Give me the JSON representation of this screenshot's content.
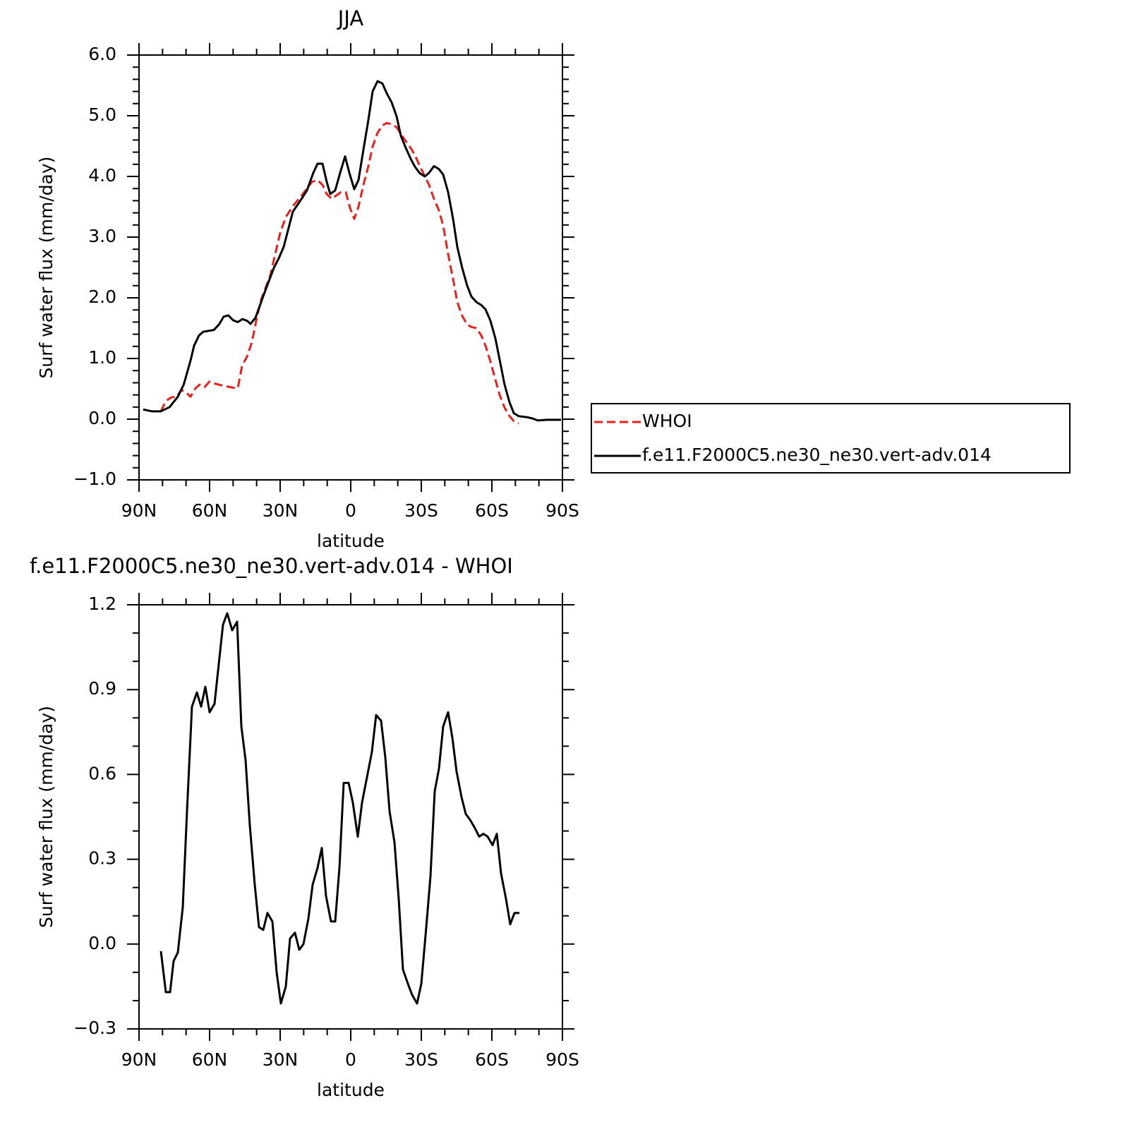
{
  "chart_data": [
    {
      "type": "line",
      "title": "JJA",
      "xlabel": "latitude",
      "ylabel": "Surf water flux (mm/day)",
      "xlim": [
        90,
        -90
      ],
      "xticks": [
        {
          "value": 90,
          "label": "90N"
        },
        {
          "value": 60,
          "label": "60N"
        },
        {
          "value": 30,
          "label": "30N"
        },
        0,
        {
          "value": -30,
          "label": "30S"
        },
        {
          "value": -60,
          "label": "60S"
        },
        {
          "value": -90,
          "label": "90S"
        }
      ],
      "ylim": [
        -1,
        6
      ],
      "yticks": [
        {
          "value": -1,
          "label": "−1.0"
        },
        {
          "value": 0,
          "label": "0.0"
        },
        {
          "value": 1,
          "label": "1.0"
        },
        {
          "value": 2,
          "label": "2.0"
        },
        {
          "value": 3,
          "label": "3.0"
        },
        {
          "value": 4,
          "label": "4.0"
        },
        {
          "value": 5,
          "label": "5.0"
        },
        {
          "value": 6,
          "label": "6.0"
        }
      ],
      "legend": "right",
      "series": [
        {
          "name": "WHOI",
          "color": "#e8211b",
          "style": "dashed",
          "x": [
            80.7,
            78.6,
            76.2,
            74.1,
            72,
            70.2,
            68.1,
            66,
            64.2,
            62.1,
            60,
            58.2,
            54,
            50.1,
            48,
            46.2,
            44.1,
            42,
            40.2,
            38.1,
            34.2,
            32.1,
            30,
            27.6,
            24.6,
            21.6,
            18.6,
            16.5,
            14.1,
            12,
            10.2,
            8.1,
            6,
            4.2,
            2.1,
            0.3,
            -1.5,
            -3.3,
            -5.4,
            -7.5,
            -9.3,
            -11.4,
            -13.5,
            -15.3,
            -17.4,
            -19.5,
            -21.3,
            -23.4,
            -25.5,
            -27.3,
            -29.4,
            -31.5,
            -33.3,
            -35.4,
            -37.5,
            -39.3,
            -41.4,
            -43.5,
            -45.3,
            -47.4,
            -49.5,
            -51.3,
            -53.4,
            -55.5,
            -57.3,
            -59.4,
            -61.5,
            -63.3,
            -65.4,
            -67.5,
            -69.3,
            -71.4
          ],
          "values": [
            0.13,
            0.3,
            0.36,
            0.37,
            0.48,
            0.45,
            0.37,
            0.51,
            0.57,
            0.53,
            0.62,
            0.59,
            0.55,
            0.52,
            0.51,
            0.88,
            1.03,
            1.27,
            1.62,
            1.97,
            2.37,
            2.72,
            3.07,
            3.33,
            3.51,
            3.65,
            3.8,
            3.91,
            3.94,
            3.86,
            3.71,
            3.63,
            3.69,
            3.74,
            3.74,
            3.48,
            3.3,
            3.5,
            3.86,
            4.17,
            4.49,
            4.72,
            4.84,
            4.88,
            4.86,
            4.81,
            4.7,
            4.58,
            4.47,
            4.35,
            4.17,
            4.0,
            3.86,
            3.63,
            3.44,
            3.19,
            2.72,
            2.31,
            1.93,
            1.7,
            1.56,
            1.52,
            1.5,
            1.38,
            1.21,
            0.95,
            0.65,
            0.4,
            0.19,
            0.05,
            -0.03,
            -0.07
          ]
        },
        {
          "name": "f.e11.F2000C5.ne30_ne30.vert-adv.014",
          "color": "#000000",
          "style": "solid",
          "x": [
            88.2,
            84.6,
            80.7,
            77,
            73.5,
            71,
            68,
            66.6,
            64.5,
            62.7,
            58.2,
            56,
            54,
            52,
            50,
            48,
            46,
            44,
            42.6,
            40.5,
            36.6,
            32.7,
            30.6,
            28.5,
            24.6,
            21.6,
            18.6,
            15.9,
            14.1,
            12,
            10.2,
            8.7,
            6.6,
            4.5,
            2.4,
            0.6,
            -1.5,
            -3.3,
            -5.4,
            -7.5,
            -9.3,
            -11.4,
            -13.5,
            -15.3,
            -17.4,
            -19.5,
            -21.3,
            -23.4,
            -25.5,
            -27.3,
            -29.4,
            -31.5,
            -33.3,
            -35.4,
            -37.5,
            -39.3,
            -41.4,
            -43.5,
            -45.3,
            -47.4,
            -49.5,
            -51.3,
            -53.4,
            -55.5,
            -57.3,
            -59.4,
            -61.5,
            -63.3,
            -65.4,
            -67.5,
            -69.3,
            -71.4,
            -75.3,
            -77.4,
            -79.5,
            -83.4,
            -87.3,
            -89.4
          ],
          "values": [
            0.16,
            0.13,
            0.13,
            0.2,
            0.37,
            0.57,
            0.98,
            1.21,
            1.38,
            1.44,
            1.47,
            1.56,
            1.69,
            1.71,
            1.63,
            1.6,
            1.65,
            1.62,
            1.57,
            1.67,
            2.09,
            2.49,
            2.65,
            2.84,
            3.42,
            3.59,
            3.77,
            4.06,
            4.21,
            4.21,
            3.91,
            3.71,
            3.77,
            4.06,
            4.33,
            4.06,
            3.79,
            3.94,
            4.44,
            4.93,
            5.4,
            5.57,
            5.53,
            5.37,
            5.22,
            4.99,
            4.67,
            4.47,
            4.29,
            4.16,
            4.05,
            4.0,
            4.06,
            4.17,
            4.12,
            4.03,
            3.74,
            3.3,
            2.84,
            2.49,
            2.2,
            2.02,
            1.93,
            1.88,
            1.81,
            1.62,
            1.33,
            0.98,
            0.57,
            0.28,
            0.1,
            0.05,
            0.03,
            0.01,
            -0.02,
            -0.01,
            -0.01,
            -0.01
          ]
        }
      ]
    },
    {
      "type": "line",
      "title": "f.e11.F2000C5.ne30_ne30.vert-adv.014 - WHOI",
      "xlabel": "latitude",
      "ylabel": "Surf water flux (mm/day)",
      "xlim": [
        90,
        -90
      ],
      "xticks": [
        {
          "value": 90,
          "label": "90N"
        },
        {
          "value": 60,
          "label": "60N"
        },
        {
          "value": 30,
          "label": "30N"
        },
        0,
        {
          "value": -30,
          "label": "30S"
        },
        {
          "value": -60,
          "label": "60S"
        },
        {
          "value": -90,
          "label": "90S"
        }
      ],
      "ylim": [
        -0.3,
        1.2
      ],
      "yticks": [
        {
          "value": -0.3,
          "label": "−0.3"
        },
        {
          "value": 0,
          "label": "0.0"
        },
        0.3,
        0.6,
        0.9,
        1.2
      ],
      "series": [
        {
          "color": "#000000",
          "style": "solid",
          "x": [
            80.7,
            78.6,
            76.8,
            75.3,
            73.5,
            71.4,
            69.6,
            67.5,
            65.4,
            63.6,
            61.8,
            60,
            57.9,
            56.1,
            54.3,
            52.5,
            50.4,
            48.3,
            46.5,
            44.7,
            42.9,
            40.8,
            39,
            37.2,
            35.4,
            33.3,
            31.5,
            29.7,
            27.6,
            25.8,
            23.7,
            21.9,
            20.1,
            18,
            16.2,
            14.1,
            12.3,
            10.5,
            8.4,
            6.6,
            4.8,
            3,
            0.9,
            -0.9,
            -3,
            -4.8,
            -6.9,
            -9,
            -10.8,
            -12.9,
            -14.7,
            -16.5,
            -18.6,
            -20.4,
            -22.2,
            -24.3,
            -26.1,
            -28.2,
            -30,
            -31.8,
            -33.9,
            -35.7,
            -37.5,
            -39.3,
            -41.4,
            -43.2,
            -45,
            -47.1,
            -48.9,
            -50.7,
            -52.8,
            -54.6,
            -56.4,
            -58.2,
            -60.3,
            -62.1,
            -63.9,
            -66,
            -67.8,
            -69.6,
            -71.7
          ],
          "values": [
            -0.025,
            -0.17,
            -0.17,
            -0.06,
            -0.03,
            0.13,
            0.47,
            0.84,
            0.89,
            0.84,
            0.91,
            0.82,
            0.85,
            0.99,
            1.13,
            1.17,
            1.11,
            1.14,
            0.77,
            0.65,
            0.42,
            0.21,
            0.06,
            0.05,
            0.11,
            0.08,
            -0.1,
            -0.21,
            -0.15,
            0.02,
            0.04,
            -0.02,
            0.0,
            0.09,
            0.21,
            0.27,
            0.34,
            0.17,
            0.08,
            0.08,
            0.27,
            0.57,
            0.57,
            0.5,
            0.38,
            0.5,
            0.59,
            0.68,
            0.81,
            0.79,
            0.66,
            0.47,
            0.36,
            0.16,
            -0.09,
            -0.14,
            -0.18,
            -0.21,
            -0.14,
            0.03,
            0.24,
            0.54,
            0.62,
            0.77,
            0.82,
            0.73,
            0.61,
            0.52,
            0.46,
            0.44,
            0.41,
            0.38,
            0.39,
            0.38,
            0.35,
            0.39,
            0.25,
            0.16,
            0.07,
            0.11,
            0.11
          ]
        }
      ]
    }
  ]
}
